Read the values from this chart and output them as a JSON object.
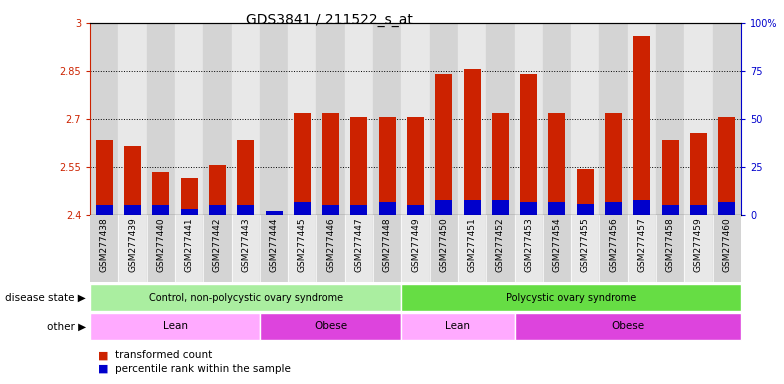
{
  "title": "GDS3841 / 211522_s_at",
  "samples": [
    "GSM277438",
    "GSM277439",
    "GSM277440",
    "GSM277441",
    "GSM277442",
    "GSM277443",
    "GSM277444",
    "GSM277445",
    "GSM277446",
    "GSM277447",
    "GSM277448",
    "GSM277449",
    "GSM277450",
    "GSM277451",
    "GSM277452",
    "GSM277453",
    "GSM277454",
    "GSM277455",
    "GSM277456",
    "GSM277457",
    "GSM277458",
    "GSM277459",
    "GSM277460"
  ],
  "transformed_count": [
    2.635,
    2.615,
    2.535,
    2.515,
    2.555,
    2.635,
    2.405,
    2.72,
    2.72,
    2.705,
    2.705,
    2.705,
    2.84,
    2.855,
    2.72,
    2.84,
    2.72,
    2.545,
    2.72,
    2.96,
    2.635,
    2.655,
    2.705
  ],
  "percentile_rank": [
    5,
    5,
    5,
    3,
    5,
    5,
    2,
    7,
    5,
    5,
    7,
    5,
    8,
    8,
    8,
    7,
    7,
    6,
    7,
    8,
    5,
    5,
    7
  ],
  "ylim_left": [
    2.4,
    3.0
  ],
  "ylim_right": [
    0,
    100
  ],
  "yticks_left": [
    2.4,
    2.55,
    2.7,
    2.85,
    3.0
  ],
  "yticks_right": [
    0,
    25,
    50,
    75,
    100
  ],
  "ytick_labels_left": [
    "2.4",
    "2.55",
    "2.7",
    "2.85",
    "3"
  ],
  "ytick_labels_right": [
    "0",
    "25",
    "50",
    "75",
    "100%"
  ],
  "bar_color_red": "#cc2200",
  "bar_color_blue": "#0000cc",
  "disease_state_groups": [
    {
      "label": "Control, non-polycystic ovary syndrome",
      "start": 0,
      "end": 11,
      "color": "#aaeea0"
    },
    {
      "label": "Polycystic ovary syndrome",
      "start": 11,
      "end": 23,
      "color": "#66dd44"
    }
  ],
  "other_groups": [
    {
      "label": "Lean",
      "start": 0,
      "end": 6,
      "color": "#ffaaff"
    },
    {
      "label": "Obese",
      "start": 6,
      "end": 11,
      "color": "#dd44dd"
    },
    {
      "label": "Lean",
      "start": 11,
      "end": 15,
      "color": "#ffaaff"
    },
    {
      "label": "Obese",
      "start": 15,
      "end": 23,
      "color": "#dd44dd"
    }
  ],
  "disease_state_label": "disease state",
  "other_label": "other",
  "legend_items": [
    {
      "label": "transformed count",
      "color": "#cc2200"
    },
    {
      "label": "percentile rank within the sample",
      "color": "#0000cc"
    }
  ],
  "col_shades": [
    "#d4d4d4",
    "#e8e8e8"
  ],
  "title_fontsize": 10,
  "tick_fontsize": 7,
  "xtick_fontsize": 6.5
}
